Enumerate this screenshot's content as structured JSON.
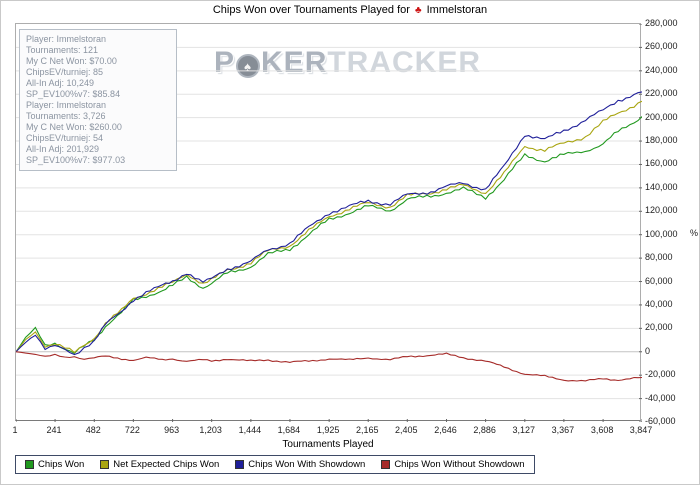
{
  "window": {
    "title_prefix": "Chips Won over Tournaments Played for",
    "suit_icon": "♣",
    "player": "Immelstoran"
  },
  "watermark": {
    "part1": "P",
    "part2": "KER",
    "part3": "TRACKER",
    "logo": "♠"
  },
  "tooltip": {
    "lines": [
      "Player: Immelstoran",
      "Tournaments: 121",
      "My C Net Won: $70.00",
      "ChipsEV/turniej: 85",
      "All-In Adj: 10,249",
      "SP_EV100%v7: $85.84",
      "Player: Immelstoran",
      "Tournaments: 3,726",
      "My C Net Won: $260.00",
      "ChipsEV/turniej: 54",
      "All-In Adj: 201,929",
      "SP_EV100%v7: $977.03"
    ]
  },
  "axis": {
    "x_title": "Tournaments Played",
    "y_unit": "%"
  },
  "chart_data": {
    "type": "line",
    "title": "Chips Won over Tournaments Played for Immelstoran",
    "xlabel": "Tournaments Played",
    "ylabel": "",
    "grid": "horizontal",
    "legend_position": "bottom",
    "xlim": [
      1,
      3847
    ],
    "ylim": [
      -60000,
      280000
    ],
    "yticks": [
      -60000,
      -40000,
      -20000,
      0,
      20000,
      40000,
      60000,
      80000,
      100000,
      120000,
      140000,
      160000,
      180000,
      200000,
      220000,
      240000,
      260000,
      280000
    ],
    "xticks": [
      1,
      241,
      482,
      722,
      963,
      1203,
      1444,
      1684,
      1925,
      2165,
      2405,
      2646,
      2886,
      3127,
      3367,
      3608,
      3847
    ],
    "x": [
      1,
      60,
      120,
      180,
      240,
      300,
      360,
      420,
      482,
      550,
      650,
      722,
      800,
      900,
      963,
      1050,
      1150,
      1203,
      1300,
      1444,
      1550,
      1684,
      1800,
      1925,
      2050,
      2165,
      2300,
      2405,
      2550,
      2646,
      2750,
      2886,
      3000,
      3127,
      3250,
      3367,
      3500,
      3608,
      3700,
      3847
    ],
    "series": [
      {
        "name": "Chips Won",
        "color": "#21991f",
        "values": [
          0,
          12000,
          20000,
          6000,
          8000,
          2000,
          -2000,
          5000,
          11000,
          22000,
          33000,
          44000,
          48000,
          52000,
          56000,
          64000,
          55000,
          58000,
          67000,
          73000,
          83000,
          88000,
          100000,
          113000,
          119000,
          124000,
          121000,
          130000,
          133000,
          136000,
          139000,
          132000,
          147000,
          168000,
          163000,
          168000,
          172000,
          177000,
          188000,
          201000
        ]
      },
      {
        "name": "Net Expected Chips Won",
        "color": "#a9a511",
        "values": [
          0,
          10000,
          17000,
          5000,
          7000,
          3000,
          -1000,
          6000,
          12000,
          24000,
          35000,
          46000,
          50000,
          55000,
          59000,
          67000,
          58000,
          61000,
          70000,
          76000,
          86000,
          91000,
          103000,
          116000,
          122000,
          127000,
          124000,
          133000,
          136000,
          139000,
          142000,
          136000,
          152000,
          176000,
          172000,
          178000,
          184000,
          196000,
          204000,
          214000
        ]
      },
      {
        "name": "Chips Won With Showdown",
        "color": "#1f1f99",
        "values": [
          0,
          8000,
          15000,
          3000,
          5000,
          1000,
          -3000,
          4000,
          10000,
          23000,
          34000,
          45000,
          51000,
          56000,
          60000,
          68000,
          59000,
          62000,
          71000,
          77000,
          87000,
          93000,
          106000,
          119000,
          124000,
          129000,
          126000,
          134000,
          137000,
          141000,
          144000,
          139000,
          158000,
          186000,
          181000,
          189000,
          198000,
          206000,
          215000,
          222000
        ]
      },
      {
        "name": "Chips Won Without Showdown",
        "color": "#a62c2a",
        "values": [
          0,
          -1000,
          -2000,
          -4000,
          -3000,
          -5000,
          -4000,
          -6000,
          -5000,
          -4000,
          -6000,
          -7000,
          -5000,
          -7000,
          -6000,
          -8000,
          -7000,
          -8000,
          -6000,
          -8000,
          -7000,
          -9000,
          -8000,
          -6000,
          -7000,
          -5000,
          -7000,
          -4000,
          -3000,
          -2000,
          -5000,
          -8000,
          -13000,
          -19000,
          -21000,
          -24000,
          -25000,
          -23000,
          -24000,
          -22000
        ]
      }
    ]
  }
}
